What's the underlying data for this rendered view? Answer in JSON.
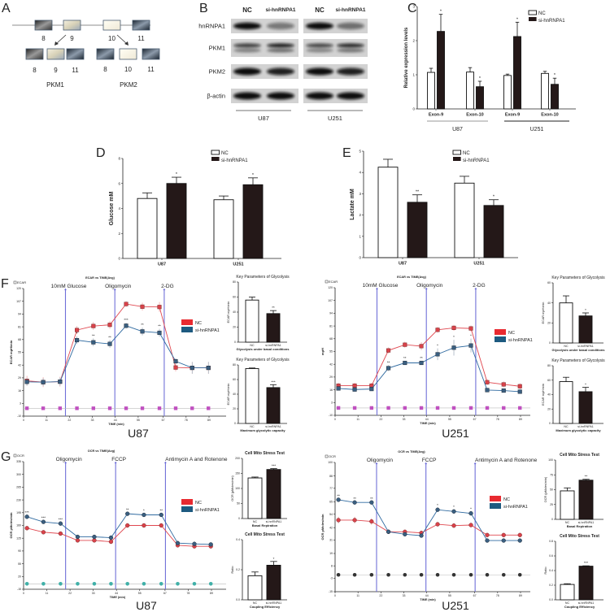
{
  "panelA": {
    "label": "A",
    "gene_exons": [
      "8",
      "9",
      "10",
      "11"
    ],
    "pkm1_exons": [
      "8",
      "9",
      "11"
    ],
    "pkm2_exons": [
      "8",
      "10",
      "11"
    ],
    "pkm1": "PKM1",
    "pkm2": "PKM2"
  },
  "panelB": {
    "label": "B",
    "lanes": [
      "NC",
      "si-hnRNPA1",
      "NC",
      "si-hnRNPA1"
    ],
    "proteins": [
      "hnRNPA1",
      "PKM1",
      "PKM2",
      "β-actin"
    ],
    "cell_lines": [
      "U87",
      "U251"
    ],
    "band_intensity": [
      [
        1.0,
        0.45,
        1.0,
        0.5
      ],
      [
        0.75,
        0.9,
        0.7,
        0.85
      ],
      [
        1.0,
        0.9,
        1.0,
        0.9
      ],
      [
        1.0,
        1.0,
        1.0,
        1.0
      ]
    ]
  },
  "chart_data": [
    {
      "label": "C",
      "type": "bar",
      "ylabel": "Relative expression levels",
      "ylim": [
        0,
        3
      ],
      "yticks": [
        "0",
        "1",
        "2",
        "3"
      ],
      "categories": [
        "Exon-9",
        "Exon-10",
        "Exon-9",
        "Exon-10"
      ],
      "groups": [
        "U87",
        "U251"
      ],
      "series": [
        {
          "name": "NC",
          "values": [
            1.07,
            1.08,
            0.98,
            1.04
          ],
          "errors": [
            0.12,
            0.13,
            0.04,
            0.06
          ],
          "sig": [
            "",
            "",
            "",
            ""
          ]
        },
        {
          "name": "si-hnRNPA1",
          "values": [
            2.27,
            0.65,
            2.12,
            0.72
          ],
          "errors": [
            0.5,
            0.16,
            0.42,
            0.18
          ],
          "sig": [
            "*",
            "*",
            "*",
            "*"
          ]
        }
      ]
    },
    {
      "label": "D",
      "type": "bar",
      "ylabel": "Glucose mM",
      "ylim": [
        0,
        8
      ],
      "yticks": [
        "0",
        "2",
        "4",
        "6",
        "8"
      ],
      "categories": [
        "U87",
        "U251"
      ],
      "series": [
        {
          "name": "NC",
          "values": [
            4.8,
            4.7
          ],
          "errors": [
            0.45,
            0.3
          ],
          "sig": [
            "",
            ""
          ]
        },
        {
          "name": "si-hnRNPA1",
          "values": [
            6.0,
            5.9
          ],
          "errors": [
            0.5,
            0.55
          ],
          "sig": [
            "*",
            "*"
          ]
        }
      ]
    },
    {
      "label": "E",
      "type": "bar",
      "ylabel": "Lactate mM",
      "ylim": [
        0,
        5
      ],
      "yticks": [
        "0",
        "1",
        "2",
        "3",
        "4",
        "5"
      ],
      "categories": [
        "U87",
        "U251"
      ],
      "series": [
        {
          "name": "NC",
          "values": [
            4.25,
            3.5
          ],
          "errors": [
            0.37,
            0.32
          ],
          "sig": [
            "",
            ""
          ]
        },
        {
          "name": "si-hnRNPA1",
          "values": [
            2.6,
            2.45
          ],
          "errors": [
            0.35,
            0.27
          ],
          "sig": [
            "**",
            "*"
          ]
        }
      ]
    },
    {
      "label": "F",
      "type": "line",
      "cell_line": "U87",
      "title": "ECAR vs TIME(Avg)",
      "legend_box": "ECAR",
      "ylabel": "ECAR mpH/min",
      "xlabel": "TIME (min)",
      "xlim": [
        0,
        89
      ],
      "xticks": [
        "0",
        "11",
        "22",
        "33",
        "44",
        "55",
        "67",
        "78",
        "89"
      ],
      "ylim": [
        -10,
        120
      ],
      "yticks": [
        "-10",
        "3",
        "16",
        "29",
        "42",
        "55",
        "68",
        "81",
        "94",
        "107",
        "120"
      ],
      "injections": [
        {
          "label": "10mM Glucose",
          "time": 20.1
        },
        {
          "label": "Oligomycin",
          "time": 43.8
        },
        {
          "label": "2-DG",
          "time": 67.5
        }
      ],
      "x": [
        1.6,
        9.4,
        17.5,
        25.6,
        33.5,
        41.4,
        49.2,
        57,
        65.2,
        73,
        80.9,
        88.7
      ],
      "series": [
        {
          "name": "NC",
          "values": [
            26,
            24.6,
            25.1,
            77.7,
            81.8,
            83,
            104.2,
            101.5,
            101.2,
            39.5,
            39.2,
            39.2
          ],
          "errors": [
            5,
            5,
            5,
            4,
            4,
            4,
            3,
            4,
            5,
            4,
            6,
            6
          ]
        },
        {
          "name": "si-hnRNPA1",
          "values": [
            24.9,
            24.6,
            25.1,
            67.4,
            65.2,
            63.6,
            82.1,
            76.3,
            74.9,
            45.9,
            39.2,
            39.2
          ],
          "errors": [
            4,
            4,
            4,
            4,
            4,
            4,
            3,
            4,
            4,
            3,
            6,
            6
          ],
          "sig": [
            "",
            "",
            "",
            "*",
            "**",
            "**",
            "***",
            "**",
            "**",
            "",
            "",
            ""
          ]
        }
      ],
      "baseline_values": [
        -2,
        -2,
        -2,
        -2,
        -2,
        -2,
        -2,
        -2,
        -2,
        -2,
        -2,
        -2
      ]
    },
    {
      "label": "",
      "type": "bar",
      "title": "Key Parameters of Glycolysis",
      "subtitle": "Glycolysis under basal conditions",
      "ylabel": "ECAR mpH/min",
      "ylim": [
        0,
        80
      ],
      "yticks": [
        "0",
        "20",
        "40",
        "60",
        "80"
      ],
      "categories": [
        "NC",
        "si-hnRNPA1"
      ],
      "values": [
        56,
        38
      ],
      "errors": [
        4,
        4
      ],
      "sig": [
        "",
        "**"
      ]
    },
    {
      "label": "",
      "type": "bar",
      "title": "Key Parameters of Glycolysis",
      "subtitle": "Maximum glycolytic capacity",
      "ylabel": "ECAR mpH/min",
      "ylim": [
        0,
        80
      ],
      "yticks": [
        "0",
        "20",
        "40",
        "60",
        "80"
      ],
      "categories": [
        "NC",
        "si-hnRNPA1"
      ],
      "values": [
        75,
        49
      ],
      "errors": [
        0.8,
        4
      ],
      "sig": [
        "",
        "***"
      ]
    },
    {
      "label": "",
      "type": "line",
      "cell_line": "U251",
      "title": "ECAR vs TIME(Avg)",
      "legend_box": "ECAR",
      "ylabel": "mpH",
      "xlabel": "TIME (min)",
      "xlim": [
        0,
        89
      ],
      "xticks": [
        "0",
        "11",
        "22",
        "33",
        "44",
        "55",
        "67",
        "78",
        "89"
      ],
      "ylim": [
        -10,
        120
      ],
      "yticks": [
        "-10",
        "3",
        "16",
        "29",
        "42",
        "55",
        "68",
        "81",
        "94",
        "107",
        "120"
      ],
      "injections": [
        {
          "label": "10mM Glucose",
          "time": 20.1
        },
        {
          "label": "Oligomycin",
          "time": 43.8
        },
        {
          "label": "2-DG",
          "time": 67.5
        }
      ],
      "x": [
        1.6,
        9.4,
        17.5,
        25.6,
        33.5,
        41.4,
        49.2,
        57,
        65.2,
        73,
        80.9,
        88.7
      ],
      "series": [
        {
          "name": "NC",
          "values": [
            20.2,
            20.2,
            20.2,
            56.1,
            61.9,
            60.5,
            77.1,
            79.1,
            78.5,
            23.7,
            21.5,
            19.6
          ],
          "errors": [
            3,
            3,
            3,
            3,
            3,
            4,
            3,
            3,
            3,
            3,
            3,
            3
          ]
        },
        {
          "name": "si-hnRNPA1",
          "values": [
            17.4,
            16.3,
            16.8,
            38.1,
            43.4,
            43.4,
            52.2,
            58.9,
            61.1,
            15.7,
            15.2,
            14.1
          ],
          "errors": [
            2,
            2,
            2,
            3,
            2,
            2,
            6,
            8,
            7,
            2,
            2,
            2
          ],
          "sig": [
            "",
            "",
            "",
            "**",
            "**",
            "**",
            "*",
            "*",
            "*",
            "",
            "",
            ""
          ]
        }
      ],
      "baseline_values": [
        -2.5,
        -2.5,
        -2.5,
        -2.5,
        -2.5,
        -2.5,
        -2.5,
        -2.5,
        -2.5,
        -2.5,
        -2.5,
        -2.5
      ]
    },
    {
      "label": "",
      "type": "bar",
      "title": "Key Parameters of Glycolysis",
      "subtitle": "Glycolysis under basal conditions",
      "ylabel": "ECAR mpH/min",
      "ylim": [
        0,
        60
      ],
      "yticks": [
        "0",
        "20",
        "40",
        "60"
      ],
      "categories": [
        "NC",
        "si-hnRNPA1"
      ],
      "values": [
        40,
        27
      ],
      "errors": [
        7,
        3
      ],
      "sig": [
        "",
        "*"
      ]
    },
    {
      "label": "",
      "type": "bar",
      "title": "Key Parameters of Glycolysis",
      "subtitle": "Maximum glycolytic capacity",
      "ylabel": "ECAR mpH/min",
      "ylim": [
        0,
        80
      ],
      "yticks": [
        "0",
        "20",
        "40",
        "60",
        "80"
      ],
      "categories": [
        "NC",
        "si-hnRNPA1"
      ],
      "values": [
        58,
        44
      ],
      "errors": [
        6,
        6
      ],
      "sig": [
        "",
        "*"
      ]
    },
    {
      "label": "G",
      "type": "line",
      "cell_line": "U87",
      "title": "OCR vs TIME(Avg)",
      "legend_box": "OCR",
      "ylabel": "OCR pMoles/min",
      "xlabel": "TIME (min)",
      "xlim": [
        0,
        89
      ],
      "xticks": [
        "0",
        "11",
        "22",
        "33",
        "44",
        "55",
        "67",
        "78",
        "89"
      ],
      "ylim": [
        -15,
        335
      ],
      "yticks": [
        "-15",
        "20",
        "55",
        "90",
        "125",
        "160",
        "195",
        "230",
        "265",
        "300",
        "335"
      ],
      "injections": [
        {
          "label": "Oligomycin",
          "time": 19.9
        },
        {
          "label": "FCCP",
          "time": 43.6
        },
        {
          "label": "Antimycin A and Rotenone",
          "time": 67.2
        }
      ],
      "x": [
        1.6,
        9.4,
        17.5,
        25.6,
        33.5,
        41.4,
        49.2,
        57,
        65.2,
        73,
        80.9,
        88.7
      ],
      "series": [
        {
          "name": "NC",
          "values": [
            152.6,
            141.4,
            137.7,
            119,
            119,
            115.3,
            160,
            160,
            160,
            105.6,
            102.7,
            102.7
          ],
          "errors": [
            5,
            4,
            4,
            5,
            5,
            5,
            6,
            6,
            6,
            4,
            4,
            4
          ]
        },
        {
          "name": "si-hnRNPA1",
          "values": [
            183.8,
            169.7,
            165.2,
            128.7,
            128.7,
            126.5,
            192,
            189,
            189,
            111.6,
            109.4,
            107.9
          ],
          "errors": [
            4,
            4,
            4,
            4,
            4,
            4,
            4,
            4,
            4,
            4,
            4,
            4
          ],
          "sig": [
            "***",
            "***",
            "***",
            "",
            "",
            "",
            "**",
            "*",
            "**",
            "",
            "",
            ""
          ]
        }
      ],
      "baseline_values": [
        0,
        0,
        0,
        0,
        0,
        0,
        0,
        0,
        0,
        0,
        0,
        0
      ]
    },
    {
      "label": "",
      "type": "bar",
      "title": "Cell Mito Stress Test",
      "subtitle": "Basal Repiration",
      "ylabel": "OCR (pMoles/min)",
      "ylim": [
        0,
        200
      ],
      "yticks": [
        "0",
        "50",
        "100",
        "150",
        "200"
      ],
      "categories": [
        "NC",
        "si-hnRNPA1"
      ],
      "values": [
        135,
        163
      ],
      "errors": [
        3,
        3
      ],
      "sig": [
        "",
        "***"
      ]
    },
    {
      "label": "",
      "type": "bar",
      "title": "Cell Mito Stress Test",
      "subtitle": "Coupling Efficiency",
      "ylabel": "Ratio",
      "ylim": [
        0,
        0.4
      ],
      "yticks": [
        "0.0",
        "0.2",
        "0.4"
      ],
      "categories": [
        "NC",
        "si-hnRNPA1"
      ],
      "values": [
        0.16,
        0.23
      ],
      "errors": [
        0.025,
        0.025
      ],
      "sig": [
        "",
        "*"
      ]
    },
    {
      "label": "",
      "type": "line",
      "cell_line": "U251",
      "title": "OCR vs TIME(Avg)",
      "legend_box": "OCR",
      "ylabel": "OCR pMoles/min",
      "xlabel": "TIME (min)",
      "xlim": [
        0,
        89
      ],
      "xticks": [
        "0",
        "11",
        "22",
        "33",
        "44",
        "55",
        "67",
        "78",
        "89"
      ],
      "ylim": [
        -15,
        100
      ],
      "yticks": [
        "-15",
        "-3",
        "8",
        "19",
        "31",
        "42",
        "54",
        "65",
        "77",
        "88",
        "100"
      ],
      "injections": [
        {
          "label": "Oligomycin",
          "time": 19.9
        },
        {
          "label": "FCCP",
          "time": 43.6
        },
        {
          "label": "Antimycin A and Rotenone",
          "time": 67.2
        }
      ],
      "x": [
        1.6,
        9.4,
        17.5,
        25.6,
        33.5,
        41.4,
        49.2,
        57,
        65.2,
        73,
        80.9,
        88.7
      ],
      "series": [
        {
          "name": "NC",
          "values": [
            48.7,
            48.7,
            47.5,
            38.3,
            38.3,
            37.3,
            45.0,
            43.8,
            44.3,
            35.4,
            35.4,
            35.4
          ],
          "errors": [
            3,
            3,
            3,
            1.5,
            1.5,
            1.5,
            2,
            2,
            2,
            1,
            1,
            1
          ]
        },
        {
          "name": "si-hnRNPA1",
          "values": [
            66.8,
            64.4,
            64.4,
            38.3,
            36.1,
            34.9,
            57.9,
            56.4,
            54.7,
            30.5,
            30.5,
            30.5
          ],
          "errors": [
            1,
            1,
            1,
            1,
            1,
            1,
            1.5,
            1.5,
            1.5,
            0.5,
            0.5,
            0.5
          ],
          "sig": [
            "**",
            "**",
            "**",
            "",
            "",
            "",
            "*",
            "*",
            "*",
            "",
            "",
            ""
          ]
        }
      ],
      "baseline_values": [
        0,
        0,
        0,
        0,
        0,
        0,
        0,
        0,
        0,
        0,
        0,
        0
      ]
    },
    {
      "label": "",
      "type": "bar",
      "title": "Cell Mito Stress Test",
      "subtitle": "Basal Repiration",
      "ylabel": "OCR (pMoles/min)",
      "ylim": [
        0,
        100
      ],
      "yticks": [
        "0",
        "25",
        "50",
        "75",
        "100"
      ],
      "categories": [
        "NC",
        "si-hnRNPA1"
      ],
      "values": [
        48,
        66
      ],
      "errors": [
        5,
        1.5
      ],
      "sig": [
        "",
        "**"
      ]
    },
    {
      "label": "",
      "type": "bar",
      "title": "Cell Mito Stress Test",
      "subtitle": "Coupling Efficiency",
      "ylabel": "Ratio",
      "ylim": [
        0,
        0.8
      ],
      "yticks": [
        "0.0",
        "0.2",
        "0.4",
        "0.6",
        "0.8"
      ],
      "categories": [
        "NC",
        "si-hnRNPA1"
      ],
      "values": [
        0.21,
        0.46
      ],
      "errors": [
        0.01,
        0.005
      ],
      "sig": [
        "",
        "***"
      ]
    }
  ],
  "colors": {
    "nc_line": "#e04850",
    "si_line": "#2f6aa0",
    "injection": "#7070d8",
    "baseline_F": "#c050c0",
    "baseline_G_U87": "#40b0a8",
    "baseline_G_U251": "#333333"
  }
}
